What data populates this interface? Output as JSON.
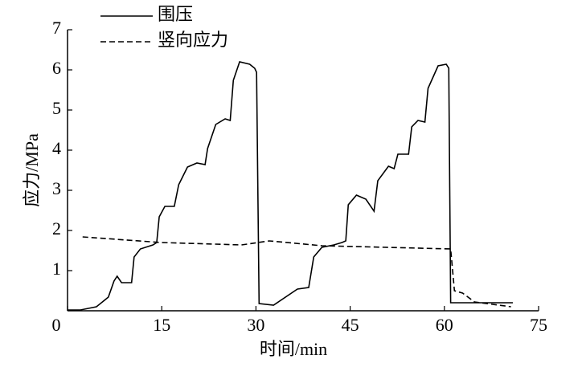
{
  "chart_data": {
    "type": "line",
    "x_label": "时间/min",
    "y_label": "应力/MPa",
    "xlim": [
      0,
      75
    ],
    "xticks": [
      0,
      15,
      30,
      45,
      60,
      75
    ],
    "ylim": [
      0,
      7
    ],
    "yticks": [
      1,
      2,
      3,
      4,
      5,
      6,
      7
    ],
    "legend": "top-left",
    "series": [
      {
        "name": "围压",
        "color": "#000000",
        "linestyle": "solid",
        "x": [
          0,
          2.05,
          4.6,
          6.5,
          7.4,
          7.9,
          8.6,
          10.2,
          10.6,
          11.6,
          13.6,
          14.2,
          14.6,
          15.5,
          17,
          17.7,
          19.1,
          20.6,
          21.9,
          22.3,
          23.6,
          25.1,
          25.9,
          26.4,
          27.4,
          29,
          29.8,
          30.1,
          30.5,
          32.8,
          36.6,
          38.4,
          39.2,
          40.5,
          42.4,
          43.7,
          44.3,
          44.7,
          46,
          47.5,
          48.8,
          49.4,
          51.1,
          52,
          52.6,
          54.3,
          54.8,
          55.8,
          56.9,
          57.4,
          59,
          60.3,
          60.7,
          61,
          70.9
        ],
        "values": [
          0.02,
          0.02,
          0.1,
          0.34,
          0.74,
          0.86,
          0.7,
          0.7,
          1.34,
          1.54,
          1.64,
          1.7,
          2.34,
          2.6,
          2.6,
          3.14,
          3.58,
          3.68,
          3.64,
          4.04,
          4.64,
          4.78,
          4.74,
          5.74,
          6.2,
          6.14,
          6.04,
          5.94,
          0.18,
          0.14,
          0.54,
          0.58,
          1.34,
          1.58,
          1.64,
          1.7,
          1.74,
          2.64,
          2.88,
          2.78,
          2.48,
          3.24,
          3.6,
          3.54,
          3.9,
          3.9,
          4.58,
          4.74,
          4.7,
          5.54,
          6.1,
          6.14,
          6.04,
          0.2,
          0.2
        ]
      },
      {
        "name": "竖向应力",
        "color": "#000000",
        "linestyle": "dashed",
        "x": [
          2.4,
          14.9,
          27.7,
          32.1,
          40.5,
          61,
          61.6,
          62.9,
          64.8,
          70.6
        ],
        "values": [
          1.84,
          1.7,
          1.64,
          1.74,
          1.62,
          1.54,
          0.5,
          0.44,
          0.22,
          0.1
        ]
      }
    ]
  }
}
